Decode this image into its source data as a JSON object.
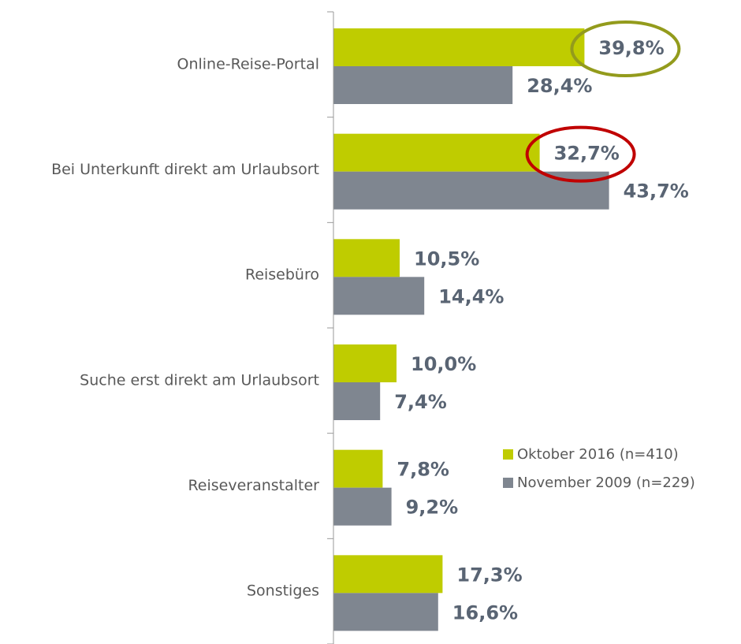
{
  "chart_data": {
    "type": "hbar",
    "categories": [
      "Online-Reise-Portal",
      "Bei Unterkunft direkt am Urlaubsort",
      "Reisebüro",
      "Suche erst direkt am Urlaubsort",
      "Reiseveranstalter",
      "Sonstiges"
    ],
    "series": [
      {
        "name": "Oktober 2016 (n=410)",
        "color": "#bfcc00",
        "values": [
          39.8,
          32.7,
          10.5,
          10.0,
          7.8,
          17.3
        ],
        "value_labels": [
          "39,8%",
          "32,7%",
          "10,5%",
          "10,0%",
          "7,8%",
          "17,3%"
        ]
      },
      {
        "name": "November 2009 (n=229)",
        "color": "#7f8690",
        "values": [
          28.4,
          43.7,
          14.4,
          7.4,
          9.2,
          16.6
        ],
        "value_labels": [
          "28,4%",
          "43,7%",
          "14,4%",
          "7,4%",
          "9,2%",
          "16,6%"
        ]
      }
    ],
    "xlim": [
      0,
      60
    ],
    "highlights": [
      {
        "series": 0,
        "index": 0,
        "color": "#939b1c"
      },
      {
        "series": 0,
        "index": 1,
        "color": "#c00000"
      }
    ]
  }
}
